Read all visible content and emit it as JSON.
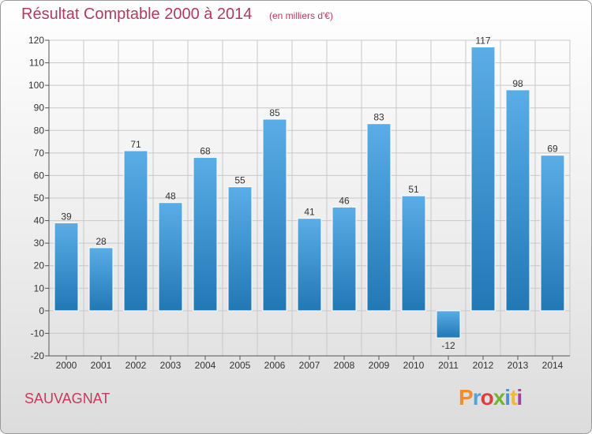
{
  "header": {
    "title": "Résultat Comptable 2000 à 2014",
    "subtitle": "(en milliers d'€)"
  },
  "footer": {
    "commune": "SAUVAGNAT",
    "logo_text": "Proxiti"
  },
  "colors": {
    "bar_top": "#5aade6",
    "bar_bottom": "#2277b5",
    "grid": "#c8c8c8",
    "title": "#b23a5e"
  },
  "chart_data": {
    "type": "bar",
    "categories": [
      "2000",
      "2001",
      "2002",
      "2003",
      "2004",
      "2005",
      "2006",
      "2007",
      "2008",
      "2009",
      "2010",
      "2011",
      "2012",
      "2013",
      "2014"
    ],
    "values": [
      39,
      28,
      71,
      48,
      68,
      55,
      85,
      41,
      46,
      83,
      51,
      -12,
      117,
      98,
      69
    ],
    "ylim": [
      -20,
      120
    ],
    "yticks": [
      -20,
      -10,
      0,
      10,
      20,
      30,
      40,
      50,
      60,
      70,
      80,
      90,
      100,
      110,
      120
    ],
    "grid": true,
    "show_data_labels": true
  }
}
